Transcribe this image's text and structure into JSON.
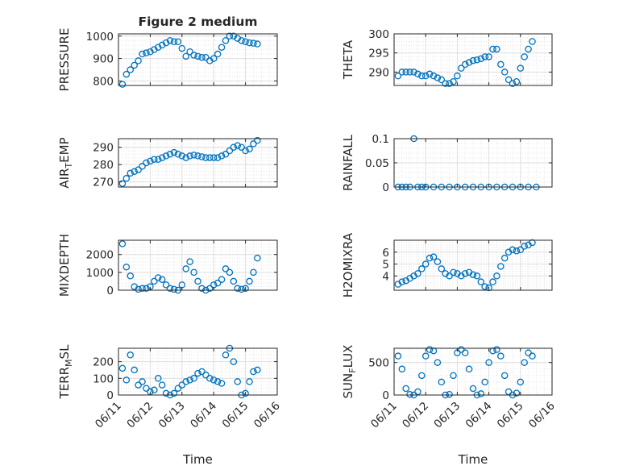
{
  "colors": {
    "marker": "#0072BD",
    "axis": "#262626",
    "grid": "#dedede",
    "background": "#ffffff"
  },
  "figure_title": "Figure 2 medium",
  "chart_data": [
    {
      "id": "pressure",
      "type": "scatter",
      "title": "Figure 2 medium",
      "ylabel": "PRESSURE",
      "ylabel_sub": "",
      "ylabel_tail": "",
      "xlim": [
        "06/11",
        "06/16"
      ],
      "ylim": [
        780,
        1010
      ],
      "yticks": [
        800,
        900,
        1000
      ],
      "ytick_labels": [
        "800",
        "900",
        "1000"
      ],
      "grid": true,
      "minor_grid": true,
      "marker": "open-circle",
      "x": [
        "06/11 03:00",
        "06/11 06:00",
        "06/11 09:00",
        "06/11 12:00",
        "06/11 15:00",
        "06/11 18:00",
        "06/11 21:00",
        "06/12 00:00",
        "06/12 03:00",
        "06/12 06:00",
        "06/12 09:00",
        "06/12 12:00",
        "06/12 15:00",
        "06/12 18:00",
        "06/12 21:00",
        "06/13 00:00",
        "06/13 03:00",
        "06/13 06:00",
        "06/13 09:00",
        "06/13 12:00",
        "06/13 15:00",
        "06/13 18:00",
        "06/13 21:00",
        "06/14 00:00",
        "06/14 03:00",
        "06/14 06:00",
        "06/14 09:00",
        "06/14 12:00",
        "06/14 15:00",
        "06/14 18:00",
        "06/14 21:00",
        "06/15 00:00",
        "06/15 03:00",
        "06/15 06:00",
        "06/15 09:00"
      ],
      "y": [
        785,
        830,
        850,
        870,
        890,
        920,
        925,
        930,
        940,
        950,
        960,
        970,
        980,
        975,
        975,
        945,
        910,
        930,
        915,
        910,
        905,
        905,
        890,
        900,
        920,
        950,
        980,
        1000,
        1000,
        990,
        980,
        975,
        970,
        968,
        965
      ]
    },
    {
      "id": "theta",
      "type": "scatter",
      "title": "",
      "ylabel": "THETA",
      "ylabel_sub": "",
      "ylabel_tail": "",
      "xlim": [
        "06/11",
        "06/16"
      ],
      "ylim": [
        286.5,
        300
      ],
      "yticks": [
        290,
        295,
        300
      ],
      "ytick_labels": [
        "290",
        "295",
        "300"
      ],
      "grid": true,
      "minor_grid": true,
      "marker": "open-circle",
      "x": [
        "06/11 03:00",
        "06/11 06:00",
        "06/11 09:00",
        "06/11 12:00",
        "06/11 15:00",
        "06/11 18:00",
        "06/11 21:00",
        "06/12 00:00",
        "06/12 03:00",
        "06/12 06:00",
        "06/12 09:00",
        "06/12 12:00",
        "06/12 15:00",
        "06/12 18:00",
        "06/12 21:00",
        "06/13 00:00",
        "06/13 03:00",
        "06/13 06:00",
        "06/13 09:00",
        "06/13 12:00",
        "06/13 15:00",
        "06/13 18:00",
        "06/13 21:00",
        "06/14 00:00",
        "06/14 03:00",
        "06/14 06:00",
        "06/14 09:00",
        "06/14 12:00",
        "06/14 15:00",
        "06/14 18:00",
        "06/14 21:00",
        "06/15 00:00",
        "06/15 03:00",
        "06/15 06:00",
        "06/15 09:00"
      ],
      "y": [
        289,
        290,
        290,
        290,
        290,
        289.5,
        289,
        289,
        289.5,
        289,
        288.5,
        288,
        287,
        287,
        287.5,
        289,
        291,
        292,
        292.5,
        293,
        293.2,
        293.5,
        294,
        294,
        296,
        296,
        292,
        290,
        288,
        287,
        287.5,
        291,
        294,
        296,
        298
      ]
    },
    {
      "id": "airtemp",
      "type": "scatter",
      "title": "",
      "ylabel": "AIR",
      "ylabel_sub": "T",
      "ylabel_tail": "EMP",
      "xlim": [
        "06/11",
        "06/16"
      ],
      "ylim": [
        267,
        295
      ],
      "yticks": [
        270,
        280,
        290
      ],
      "ytick_labels": [
        "270",
        "280",
        "290"
      ],
      "grid": true,
      "minor_grid": true,
      "marker": "open-circle",
      "x": [
        "06/11 03:00",
        "06/11 06:00",
        "06/11 09:00",
        "06/11 12:00",
        "06/11 15:00",
        "06/11 18:00",
        "06/11 21:00",
        "06/12 00:00",
        "06/12 03:00",
        "06/12 06:00",
        "06/12 09:00",
        "06/12 12:00",
        "06/12 15:00",
        "06/12 18:00",
        "06/12 21:00",
        "06/13 00:00",
        "06/13 03:00",
        "06/13 06:00",
        "06/13 09:00",
        "06/13 12:00",
        "06/13 15:00",
        "06/13 18:00",
        "06/13 21:00",
        "06/14 00:00",
        "06/14 03:00",
        "06/14 06:00",
        "06/14 09:00",
        "06/14 12:00",
        "06/14 15:00",
        "06/14 18:00",
        "06/14 21:00",
        "06/15 00:00",
        "06/15 03:00",
        "06/15 06:00",
        "06/15 09:00"
      ],
      "y": [
        269,
        272,
        275,
        276,
        277,
        279,
        281,
        282,
        283,
        283,
        284,
        285,
        286,
        287,
        286,
        285,
        284,
        285,
        285.5,
        285,
        284.5,
        284,
        284,
        284,
        284,
        285,
        286,
        288,
        290,
        291,
        290,
        288,
        289,
        292,
        294
      ]
    },
    {
      "id": "rainfall",
      "type": "scatter",
      "title": "",
      "ylabel": "RAINFALL",
      "ylabel_sub": "",
      "ylabel_tail": "",
      "xlim": [
        "06/11",
        "06/16"
      ],
      "ylim": [
        0,
        0.1
      ],
      "yticks": [
        0,
        0.05,
        0.1
      ],
      "ytick_labels": [
        "0",
        "0.05",
        "0.1"
      ],
      "grid": true,
      "minor_grid": true,
      "marker": "open-circle",
      "x": [
        "06/11 03:00",
        "06/11 06:00",
        "06/11 09:00",
        "06/11 12:00",
        "06/11 15:00",
        "06/11 18:00",
        "06/11 21:00",
        "06/12 00:00",
        "06/12 06:00",
        "06/12 12:00",
        "06/12 18:00",
        "06/13 00:00",
        "06/13 06:00",
        "06/13 12:00",
        "06/13 18:00",
        "06/14 00:00",
        "06/14 06:00",
        "06/14 12:00",
        "06/14 18:00",
        "06/15 00:00",
        "06/15 06:00",
        "06/15 12:00"
      ],
      "y": [
        0,
        0,
        0,
        0,
        0.1,
        0,
        0,
        0,
        0,
        0,
        0,
        0,
        0,
        0,
        0,
        0,
        0,
        0,
        0,
        0,
        0,
        0
      ]
    },
    {
      "id": "mixdepth",
      "type": "scatter",
      "title": "",
      "ylabel": "MIXDEPTH",
      "ylabel_sub": "",
      "ylabel_tail": "",
      "xlim": [
        "06/11",
        "06/16"
      ],
      "ylim": [
        0,
        2800
      ],
      "yticks": [
        0,
        1000,
        2000
      ],
      "ytick_labels": [
        "0",
        "1000",
        "2000"
      ],
      "grid": true,
      "minor_grid": true,
      "marker": "open-circle",
      "x": [
        "06/11 03:00",
        "06/11 06:00",
        "06/11 09:00",
        "06/11 12:00",
        "06/11 15:00",
        "06/11 18:00",
        "06/11 21:00",
        "06/12 00:00",
        "06/12 03:00",
        "06/12 06:00",
        "06/12 09:00",
        "06/12 12:00",
        "06/12 15:00",
        "06/12 18:00",
        "06/12 21:00",
        "06/13 00:00",
        "06/13 03:00",
        "06/13 06:00",
        "06/13 09:00",
        "06/13 12:00",
        "06/13 15:00",
        "06/13 18:00",
        "06/13 21:00",
        "06/14 00:00",
        "06/14 03:00",
        "06/14 06:00",
        "06/14 09:00",
        "06/14 12:00",
        "06/14 15:00",
        "06/14 18:00",
        "06/14 21:00",
        "06/15 00:00",
        "06/15 03:00",
        "06/15 06:00",
        "06/15 09:00"
      ],
      "y": [
        2600,
        1300,
        800,
        200,
        50,
        100,
        100,
        200,
        500,
        700,
        600,
        300,
        100,
        50,
        0,
        300,
        1200,
        1600,
        1000,
        500,
        100,
        0,
        100,
        300,
        400,
        600,
        1200,
        1000,
        500,
        100,
        50,
        100,
        500,
        1000,
        1800
      ]
    },
    {
      "id": "h2omixra",
      "type": "scatter",
      "title": "",
      "ylabel": "H2OMIXRA",
      "ylabel_sub": "",
      "ylabel_tail": "",
      "xlim": [
        "06/11",
        "06/16"
      ],
      "ylim": [
        2.8,
        7
      ],
      "yticks": [
        4,
        5,
        6
      ],
      "ytick_labels": [
        "4",
        "5",
        "6"
      ],
      "grid": true,
      "minor_grid": true,
      "marker": "open-circle",
      "x": [
        "06/11 03:00",
        "06/11 06:00",
        "06/11 09:00",
        "06/11 12:00",
        "06/11 15:00",
        "06/11 18:00",
        "06/11 21:00",
        "06/12 00:00",
        "06/12 03:00",
        "06/12 06:00",
        "06/12 09:00",
        "06/12 12:00",
        "06/12 15:00",
        "06/12 18:00",
        "06/12 21:00",
        "06/13 00:00",
        "06/13 03:00",
        "06/13 06:00",
        "06/13 09:00",
        "06/13 12:00",
        "06/13 15:00",
        "06/13 18:00",
        "06/13 21:00",
        "06/14 00:00",
        "06/14 03:00",
        "06/14 06:00",
        "06/14 09:00",
        "06/14 12:00",
        "06/14 15:00",
        "06/14 18:00",
        "06/14 21:00",
        "06/15 00:00",
        "06/15 03:00",
        "06/15 06:00",
        "06/15 09:00"
      ],
      "y": [
        3.3,
        3.5,
        3.6,
        3.8,
        4,
        4.2,
        4.6,
        5,
        5.5,
        5.6,
        5.2,
        4.6,
        4.2,
        4,
        4.3,
        4.2,
        4,
        4.2,
        4.3,
        4.1,
        4,
        3.5,
        3.1,
        3,
        3.5,
        4,
        4.8,
        5.5,
        6,
        6.2,
        6.1,
        6.2,
        6.5,
        6.6,
        6.8
      ]
    },
    {
      "id": "terrmsl",
      "type": "scatter",
      "title": "",
      "ylabel": "TERR",
      "ylabel_sub": "M",
      "ylabel_tail": "SL",
      "xlim": [
        "06/11",
        "06/16"
      ],
      "ylim": [
        0,
        280
      ],
      "yticks": [
        0,
        100,
        200
      ],
      "ytick_labels": [
        "0",
        "100",
        "200"
      ],
      "grid": true,
      "minor_grid": true,
      "marker": "open-circle",
      "x": [
        "06/11 03:00",
        "06/11 06:00",
        "06/11 09:00",
        "06/11 12:00",
        "06/11 15:00",
        "06/11 18:00",
        "06/11 21:00",
        "06/12 00:00",
        "06/12 03:00",
        "06/12 06:00",
        "06/12 09:00",
        "06/12 12:00",
        "06/12 15:00",
        "06/12 18:00",
        "06/12 21:00",
        "06/13 00:00",
        "06/13 03:00",
        "06/13 06:00",
        "06/13 09:00",
        "06/13 12:00",
        "06/13 15:00",
        "06/13 18:00",
        "06/13 21:00",
        "06/14 00:00",
        "06/14 03:00",
        "06/14 06:00",
        "06/14 09:00",
        "06/14 12:00",
        "06/14 15:00",
        "06/14 18:00",
        "06/14 21:00",
        "06/15 00:00",
        "06/15 03:00",
        "06/15 06:00",
        "06/15 09:00"
      ],
      "y": [
        160,
        90,
        240,
        150,
        60,
        80,
        40,
        20,
        30,
        100,
        60,
        10,
        0,
        10,
        40,
        60,
        80,
        90,
        100,
        130,
        140,
        120,
        100,
        90,
        80,
        70,
        240,
        280,
        200,
        80,
        0,
        10,
        80,
        140,
        150
      ]
    },
    {
      "id": "sunflux",
      "type": "scatter",
      "title": "",
      "ylabel": "SUN",
      "ylabel_sub": "F",
      "ylabel_tail": "LUX",
      "xlim": [
        "06/11",
        "06/16"
      ],
      "ylim": [
        0,
        720
      ],
      "yticks": [
        0,
        500
      ],
      "ytick_labels": [
        "0",
        "500"
      ],
      "grid": true,
      "minor_grid": true,
      "marker": "open-circle",
      "x": [
        "06/11 03:00",
        "06/11 06:00",
        "06/11 09:00",
        "06/11 12:00",
        "06/11 15:00",
        "06/11 18:00",
        "06/11 21:00",
        "06/12 00:00",
        "06/12 03:00",
        "06/12 06:00",
        "06/12 09:00",
        "06/12 12:00",
        "06/12 15:00",
        "06/12 18:00",
        "06/12 21:00",
        "06/13 00:00",
        "06/13 03:00",
        "06/13 06:00",
        "06/13 09:00",
        "06/13 12:00",
        "06/13 15:00",
        "06/13 18:00",
        "06/13 21:00",
        "06/14 00:00",
        "06/14 03:00",
        "06/14 06:00",
        "06/14 09:00",
        "06/14 12:00",
        "06/14 15:00",
        "06/14 18:00",
        "06/14 21:00",
        "06/15 00:00",
        "06/15 03:00",
        "06/15 06:00",
        "06/15 09:00"
      ],
      "y": [
        600,
        400,
        100,
        10,
        0,
        50,
        300,
        600,
        700,
        680,
        500,
        200,
        0,
        10,
        300,
        650,
        700,
        650,
        400,
        100,
        0,
        20,
        200,
        500,
        680,
        700,
        600,
        300,
        50,
        0,
        30,
        200,
        500,
        650,
        600
      ]
    }
  ],
  "x_axis": {
    "label": "Time",
    "ticks": [
      "06/11",
      "06/12",
      "06/13",
      "06/14",
      "06/15",
      "06/16"
    ]
  }
}
